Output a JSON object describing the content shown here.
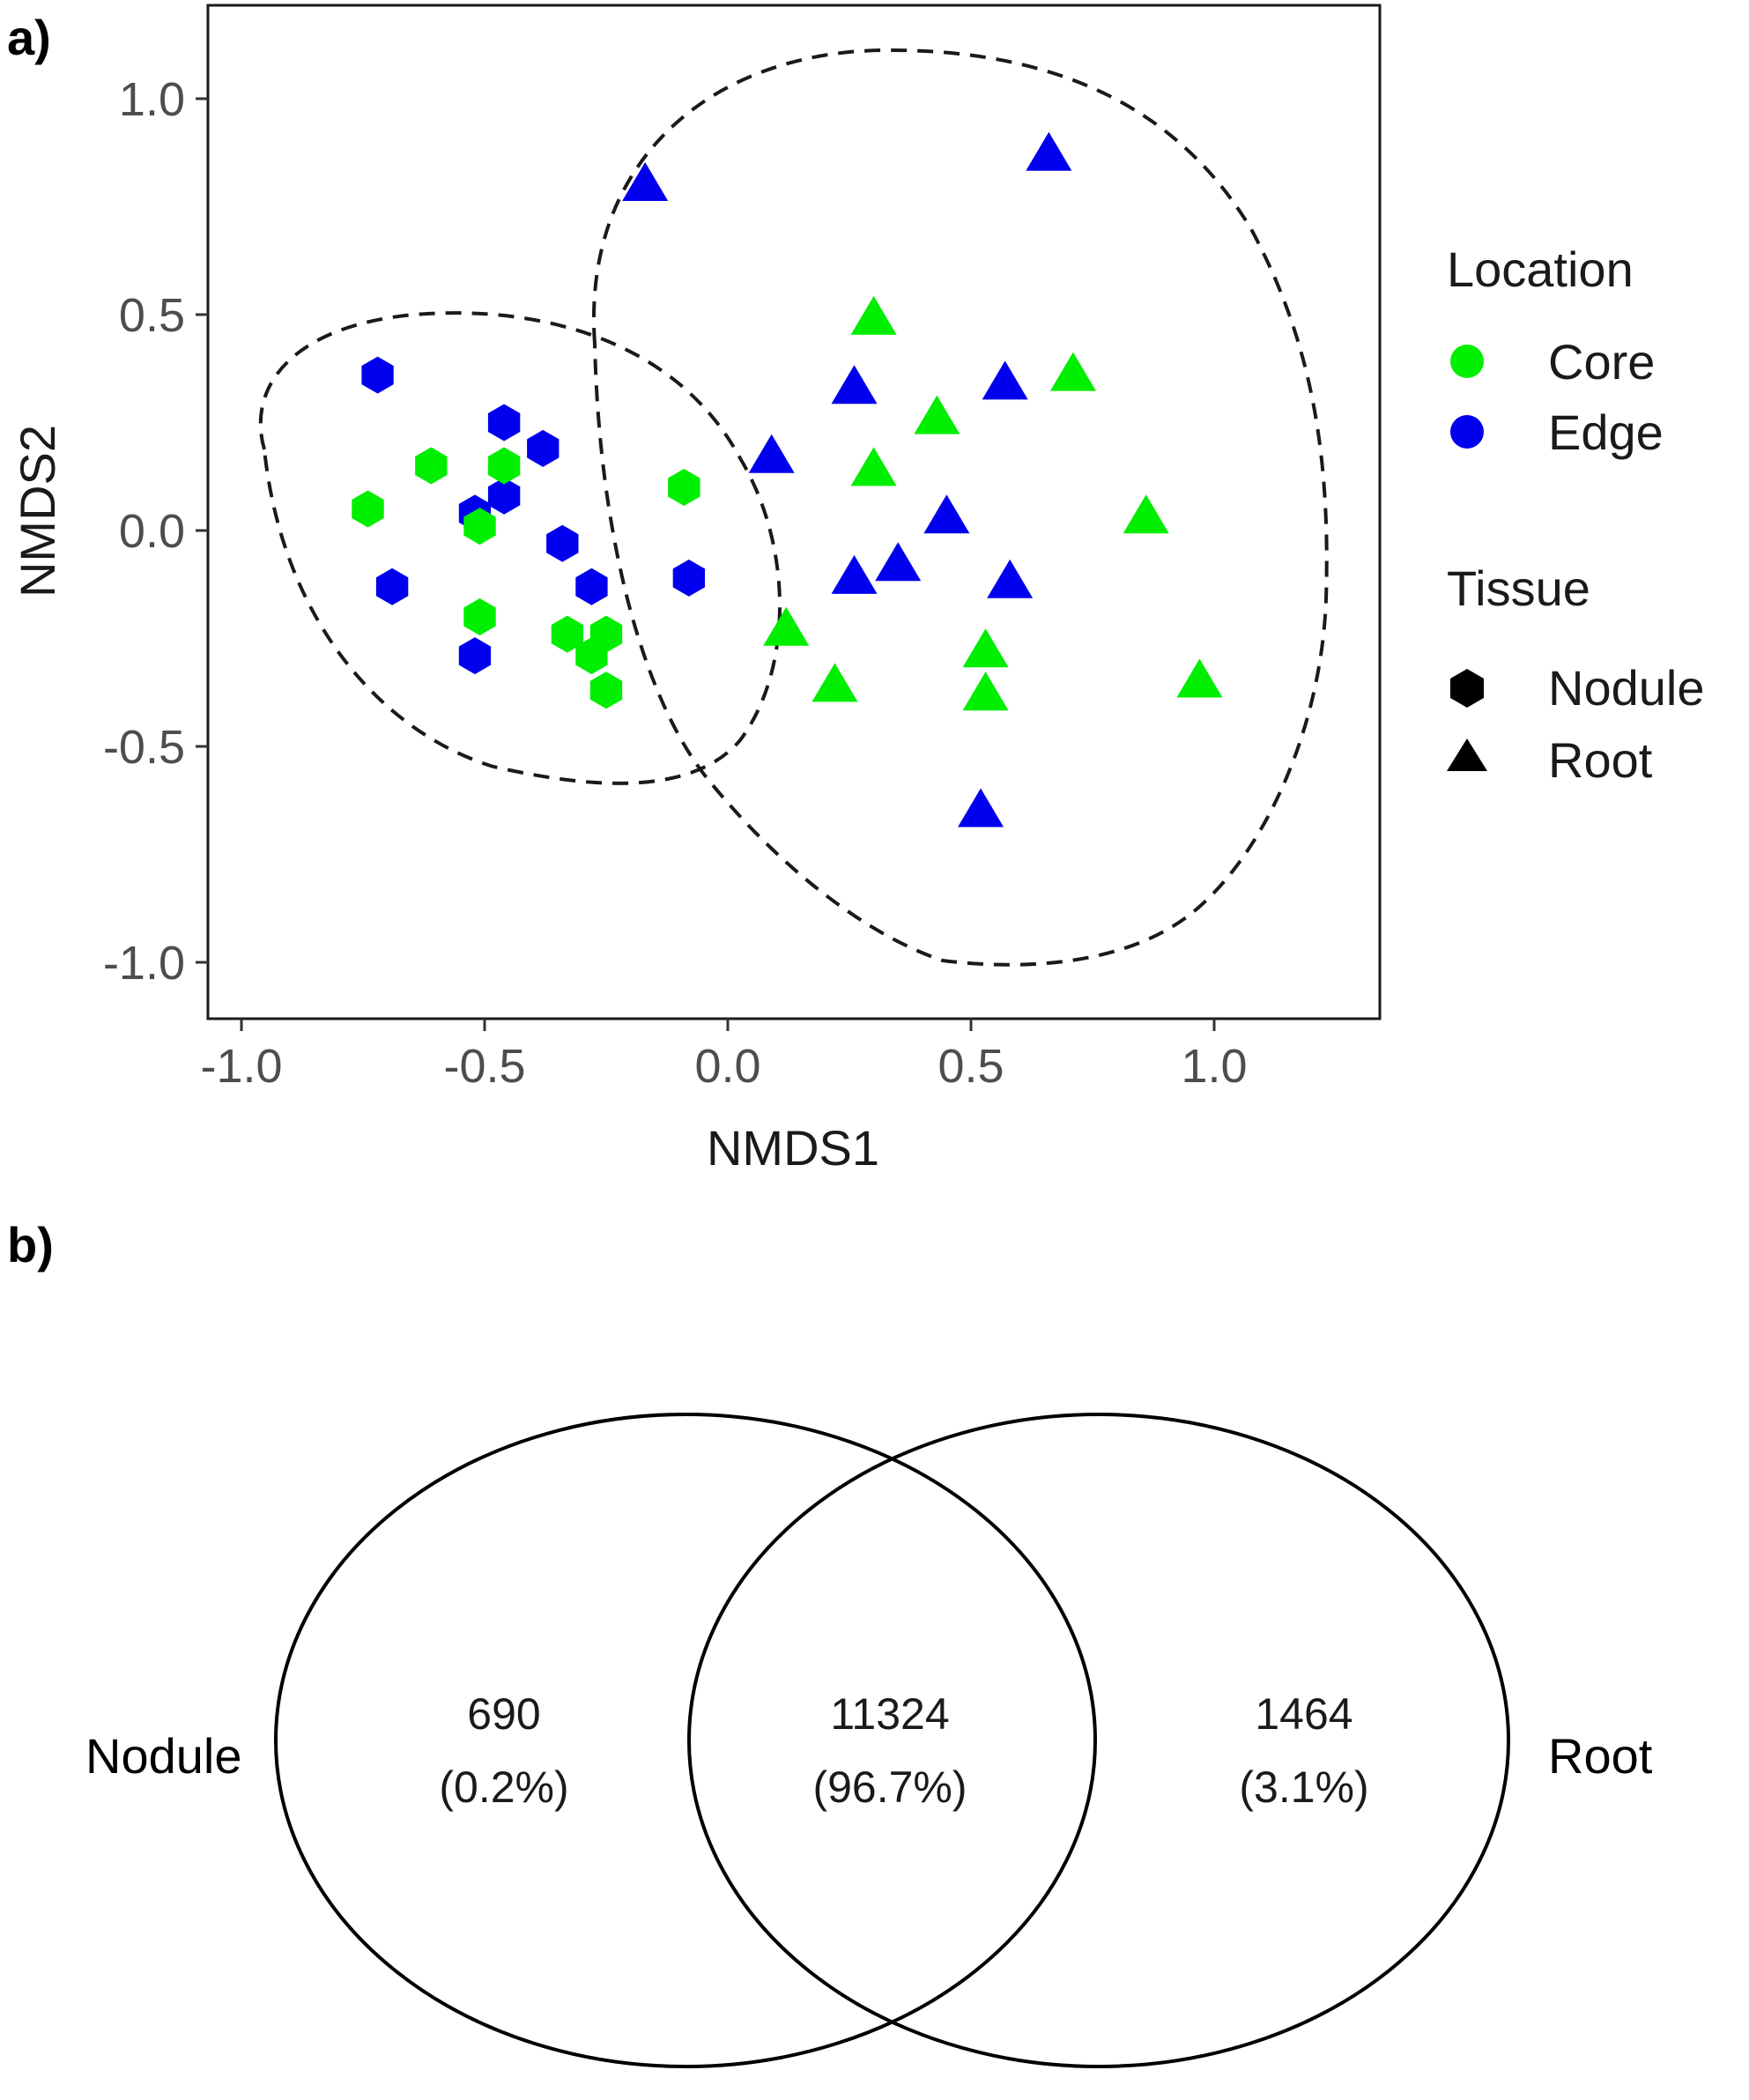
{
  "panels": {
    "a": "a)",
    "b": "b)"
  },
  "colors": {
    "core": "#00ee00",
    "edge": "#0000ee",
    "ellipse": "#1a1a1a"
  },
  "chart_data": [
    {
      "type": "scatter",
      "xlabel": "NMDS1",
      "ylabel": "NMDS2",
      "xlim": [
        -1.1,
        1.25
      ],
      "ylim": [
        -1.1,
        1.2
      ],
      "xticks": [
        -1.0,
        -0.5,
        0.0,
        0.5,
        1.0
      ],
      "yticks": [
        -1.0,
        -0.5,
        0.0,
        0.5,
        1.0
      ],
      "xtick_labels": [
        "-1.0",
        "-0.5",
        "0.0",
        "0.5",
        "1.0"
      ],
      "ytick_labels": [
        "-1.0",
        "-0.5",
        "0.0",
        "0.5",
        "1.0"
      ],
      "grid": false,
      "legend": {
        "placement": "right",
        "location_title": "Location",
        "location_items": [
          "Core",
          "Edge"
        ],
        "tissue_title": "Tissue",
        "tissue_items": [
          "Nodule",
          "Root"
        ]
      },
      "points": [
        {
          "x": -0.72,
          "y": 0.36,
          "location": "Edge",
          "tissue": "Nodule"
        },
        {
          "x": -0.46,
          "y": 0.25,
          "location": "Edge",
          "tissue": "Nodule"
        },
        {
          "x": -0.38,
          "y": 0.19,
          "location": "Edge",
          "tissue": "Nodule"
        },
        {
          "x": -0.52,
          "y": 0.04,
          "location": "Edge",
          "tissue": "Nodule"
        },
        {
          "x": -0.46,
          "y": 0.08,
          "location": "Edge",
          "tissue": "Nodule"
        },
        {
          "x": -0.34,
          "y": -0.03,
          "location": "Edge",
          "tissue": "Nodule"
        },
        {
          "x": -0.69,
          "y": -0.13,
          "location": "Edge",
          "tissue": "Nodule"
        },
        {
          "x": -0.28,
          "y": -0.13,
          "location": "Edge",
          "tissue": "Nodule"
        },
        {
          "x": -0.08,
          "y": -0.11,
          "location": "Edge",
          "tissue": "Nodule"
        },
        {
          "x": -0.52,
          "y": -0.29,
          "location": "Edge",
          "tissue": "Nodule"
        },
        {
          "x": -0.61,
          "y": 0.15,
          "location": "Core",
          "tissue": "Nodule"
        },
        {
          "x": -0.46,
          "y": 0.15,
          "location": "Core",
          "tissue": "Nodule"
        },
        {
          "x": -0.74,
          "y": 0.05,
          "location": "Core",
          "tissue": "Nodule"
        },
        {
          "x": -0.51,
          "y": 0.01,
          "location": "Core",
          "tissue": "Nodule"
        },
        {
          "x": -0.09,
          "y": 0.1,
          "location": "Core",
          "tissue": "Nodule"
        },
        {
          "x": -0.51,
          "y": -0.2,
          "location": "Core",
          "tissue": "Nodule"
        },
        {
          "x": -0.33,
          "y": -0.24,
          "location": "Core",
          "tissue": "Nodule"
        },
        {
          "x": -0.25,
          "y": -0.24,
          "location": "Core",
          "tissue": "Nodule"
        },
        {
          "x": -0.28,
          "y": -0.29,
          "location": "Core",
          "tissue": "Nodule"
        },
        {
          "x": -0.25,
          "y": -0.37,
          "location": "Core",
          "tissue": "Nodule"
        },
        {
          "x": -0.17,
          "y": 0.8,
          "location": "Edge",
          "tissue": "Root"
        },
        {
          "x": 0.66,
          "y": 0.87,
          "location": "Edge",
          "tissue": "Root"
        },
        {
          "x": 0.26,
          "y": 0.33,
          "location": "Edge",
          "tissue": "Root"
        },
        {
          "x": 0.57,
          "y": 0.34,
          "location": "Edge",
          "tissue": "Root"
        },
        {
          "x": 0.09,
          "y": 0.17,
          "location": "Edge",
          "tissue": "Root"
        },
        {
          "x": 0.45,
          "y": 0.03,
          "location": "Edge",
          "tissue": "Root"
        },
        {
          "x": 0.35,
          "y": -0.08,
          "location": "Edge",
          "tissue": "Root"
        },
        {
          "x": 0.26,
          "y": -0.11,
          "location": "Edge",
          "tissue": "Root"
        },
        {
          "x": 0.58,
          "y": -0.12,
          "location": "Edge",
          "tissue": "Root"
        },
        {
          "x": 0.52,
          "y": -0.65,
          "location": "Edge",
          "tissue": "Root"
        },
        {
          "x": 0.3,
          "y": 0.49,
          "location": "Core",
          "tissue": "Root"
        },
        {
          "x": 0.71,
          "y": 0.36,
          "location": "Core",
          "tissue": "Root"
        },
        {
          "x": 0.43,
          "y": 0.26,
          "location": "Core",
          "tissue": "Root"
        },
        {
          "x": 0.3,
          "y": 0.14,
          "location": "Core",
          "tissue": "Root"
        },
        {
          "x": 0.86,
          "y": 0.03,
          "location": "Core",
          "tissue": "Root"
        },
        {
          "x": 0.12,
          "y": -0.23,
          "location": "Core",
          "tissue": "Root"
        },
        {
          "x": 0.53,
          "y": -0.28,
          "location": "Core",
          "tissue": "Root"
        },
        {
          "x": 0.22,
          "y": -0.36,
          "location": "Core",
          "tissue": "Root"
        },
        {
          "x": 0.53,
          "y": -0.38,
          "location": "Core",
          "tissue": "Root"
        },
        {
          "x": 0.97,
          "y": -0.35,
          "location": "Core",
          "tissue": "Root"
        }
      ]
    },
    {
      "type": "venn",
      "sets": [
        "Nodule",
        "Root"
      ],
      "regions": [
        {
          "name": "Nodule only",
          "count": "690",
          "percent": "(0.2%)"
        },
        {
          "name": "Shared",
          "count": "11324",
          "percent": "(96.7%)"
        },
        {
          "name": "Root only",
          "count": "1464",
          "percent": "(3.1%)"
        }
      ]
    }
  ]
}
